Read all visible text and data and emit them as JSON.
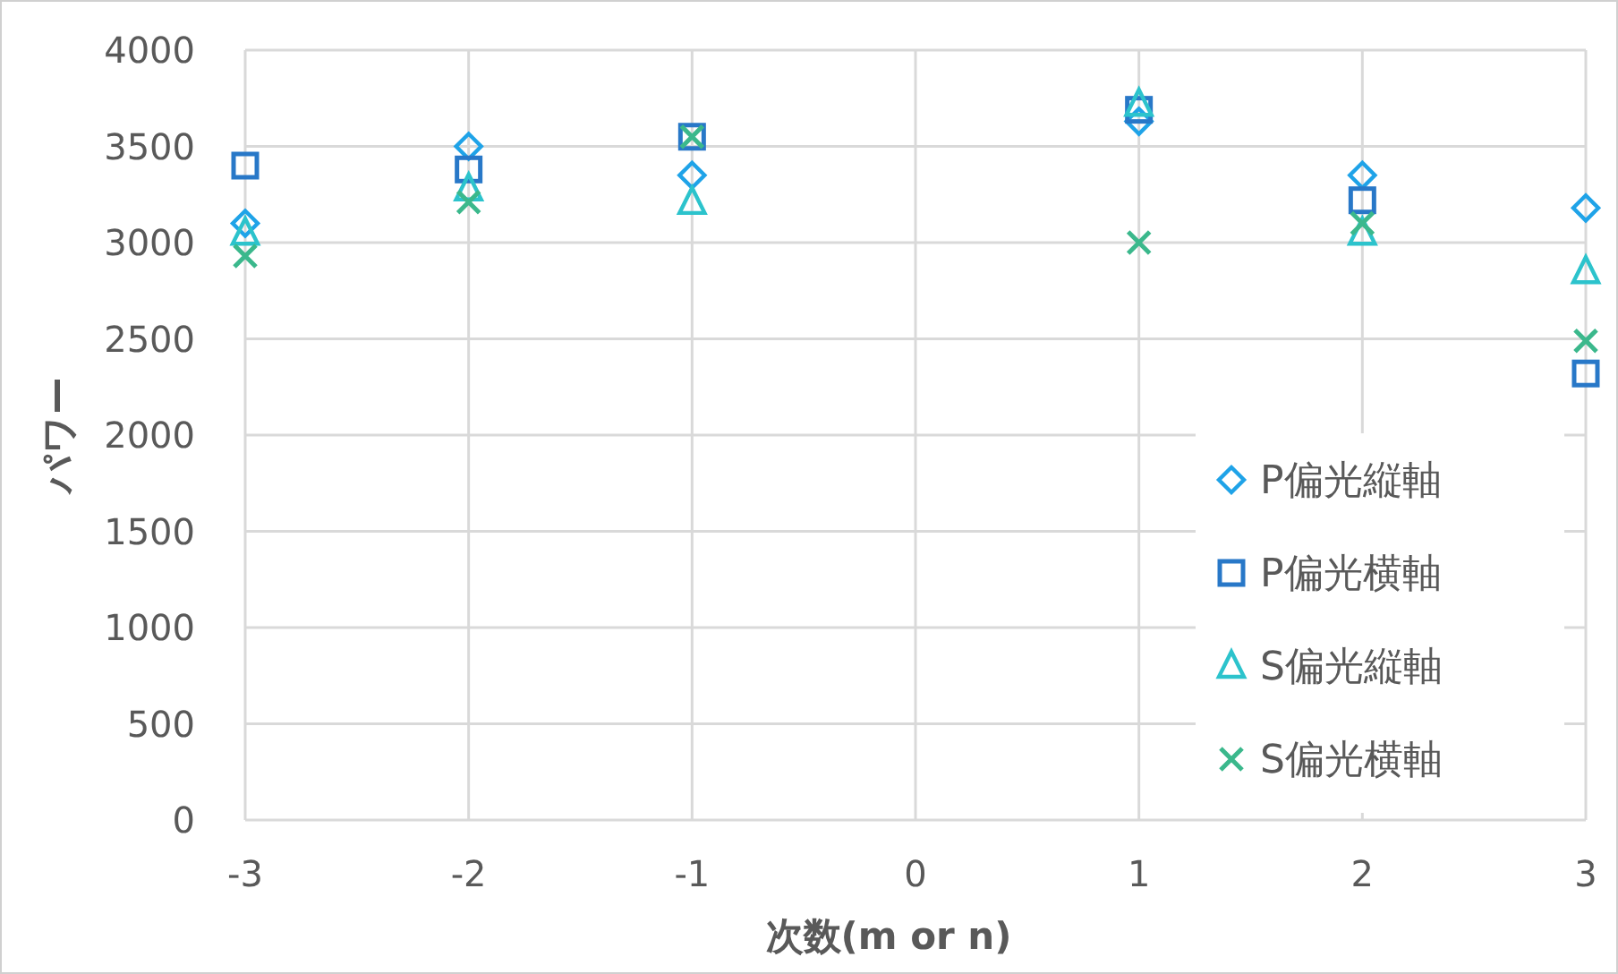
{
  "chart_data": {
    "type": "scatter",
    "xlabel": "次数(m or n)",
    "ylabel": "パワー",
    "xlim": [
      -3,
      3
    ],
    "xticks": [
      -3,
      -2,
      -1,
      0,
      1,
      2,
      3
    ],
    "ylim": [
      0,
      4000
    ],
    "yticks": [
      0,
      500,
      1000,
      1500,
      2000,
      2500,
      3000,
      3500,
      4000
    ],
    "grid": true,
    "legend": "bottom right",
    "x": [
      -3,
      -2,
      -1,
      1,
      2,
      3
    ],
    "series": [
      {
        "name": "P偏光縦軸",
        "color": "#1fa3e8",
        "marker": "diamond",
        "values": [
          3100,
          3500,
          3350,
          3630,
          3350,
          3180
        ]
      },
      {
        "name": "P偏光横軸",
        "color": "#2878c8",
        "marker": "square",
        "values": [
          3400,
          3380,
          3550,
          3690,
          3220,
          2320
        ]
      },
      {
        "name": "S偏光縦軸",
        "color": "#2cc3cc",
        "marker": "triangle",
        "values": [
          3050,
          3280,
          3210,
          3720,
          3050,
          2850
        ]
      },
      {
        "name": "S偏光横軸",
        "color": "#3bb88c",
        "marker": "cross",
        "values": [
          2930,
          3210,
          3550,
          3000,
          3100,
          2490
        ]
      }
    ]
  }
}
